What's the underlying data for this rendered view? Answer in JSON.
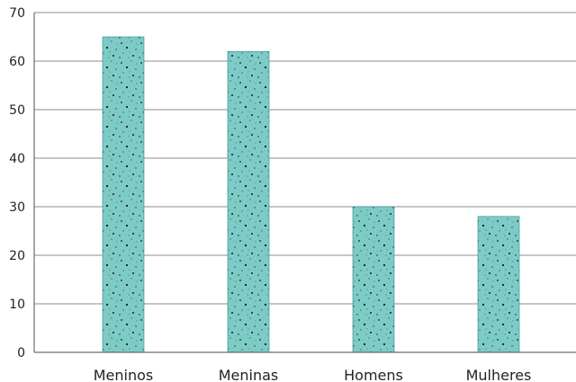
{
  "chart_data": {
    "type": "bar",
    "categories": [
      "Meninos",
      "Meninas",
      "Homens",
      "Mulheres"
    ],
    "values": [
      65,
      62,
      30,
      28
    ],
    "ylim": [
      0,
      70
    ],
    "yticks": [
      0,
      10,
      20,
      30,
      40,
      50,
      60,
      70
    ],
    "grid": true,
    "legend": "none",
    "title": "",
    "xlabel": "",
    "ylabel": "",
    "bar_color": "#7dcbc6",
    "dot_color": "#1a1a1a"
  }
}
